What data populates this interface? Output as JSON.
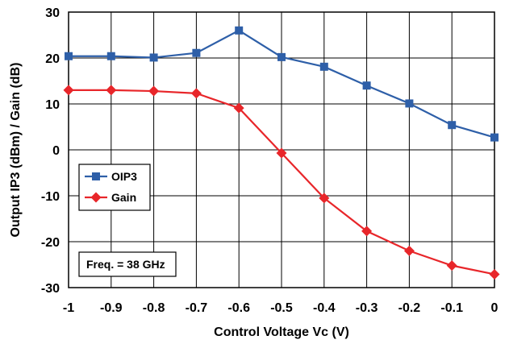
{
  "chart_data": {
    "type": "line",
    "xlabel": "Control Voltage Vc (V)",
    "ylabel": "Output IP3 (dBm) / Gain (dB)",
    "xlim": [
      -1,
      0
    ],
    "ylim": [
      -30,
      30
    ],
    "x_ticks": [
      "-1",
      "-0.9",
      "-0.8",
      "-0.7",
      "-0.6",
      "-0.5",
      "-0.4",
      "-0.3",
      "-0.2",
      "-0.1",
      "0"
    ],
    "y_ticks": [
      "30",
      "20",
      "10",
      "0",
      "-10",
      "-20",
      "-30"
    ],
    "grid": true,
    "x": [
      -1,
      -0.9,
      -0.8,
      -0.7,
      -0.6,
      -0.5,
      -0.4,
      -0.3,
      -0.2,
      -0.1,
      0
    ],
    "series": [
      {
        "name": "OIP3",
        "color": "#2e5fa8",
        "marker": "square",
        "values": [
          20.4,
          20.4,
          20.1,
          21.1,
          26.0,
          20.2,
          18.1,
          14.0,
          10.1,
          5.4,
          2.7
        ]
      },
      {
        "name": "Gain",
        "color": "#e8262a",
        "marker": "diamond",
        "values": [
          13.0,
          13.0,
          12.8,
          12.3,
          9.1,
          -0.7,
          -10.5,
          -17.7,
          -22.0,
          -25.2,
          -27.1
        ]
      }
    ],
    "legend_position": "left-middle",
    "annotation": "Freq. = 38 GHz"
  }
}
